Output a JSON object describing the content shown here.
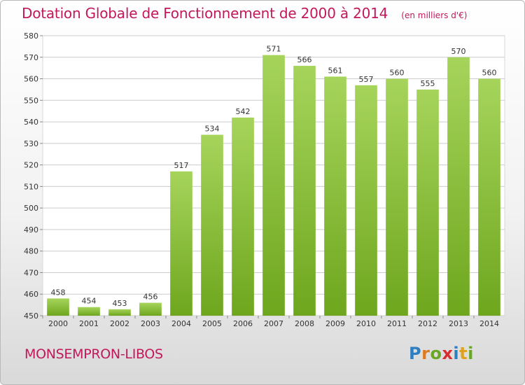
{
  "header": {
    "title": "Dotation Globale de Fonctionnement de 2000 à 2014",
    "subtitle": "(en milliers d'€)"
  },
  "commune": "MONSEMPRON-LIBOS",
  "logo": {
    "letters": [
      "P",
      "r",
      "o",
      "x",
      "i",
      "t",
      "i"
    ]
  },
  "colors": {
    "bar_light": "#a6d45b",
    "bar_dark": "#6ea61e",
    "title": "#c2185b",
    "grid": "#cccccc"
  },
  "chart_data": {
    "type": "bar",
    "title": "Dotation Globale de Fonctionnement de 2000 à 2014",
    "subtitle": "(en milliers d'€)",
    "categories": [
      "2000",
      "2001",
      "2002",
      "2003",
      "2004",
      "2005",
      "2006",
      "2007",
      "2008",
      "2009",
      "2010",
      "2011",
      "2012",
      "2013",
      "2014"
    ],
    "values": [
      458,
      454,
      453,
      456,
      517,
      534,
      542,
      571,
      566,
      561,
      557,
      560,
      555,
      570,
      560
    ],
    "ylim": [
      450,
      580
    ],
    "yticks": [
      450,
      460,
      470,
      480,
      490,
      500,
      510,
      520,
      530,
      540,
      550,
      560,
      570,
      580
    ],
    "grid": true,
    "data_labels": true
  }
}
